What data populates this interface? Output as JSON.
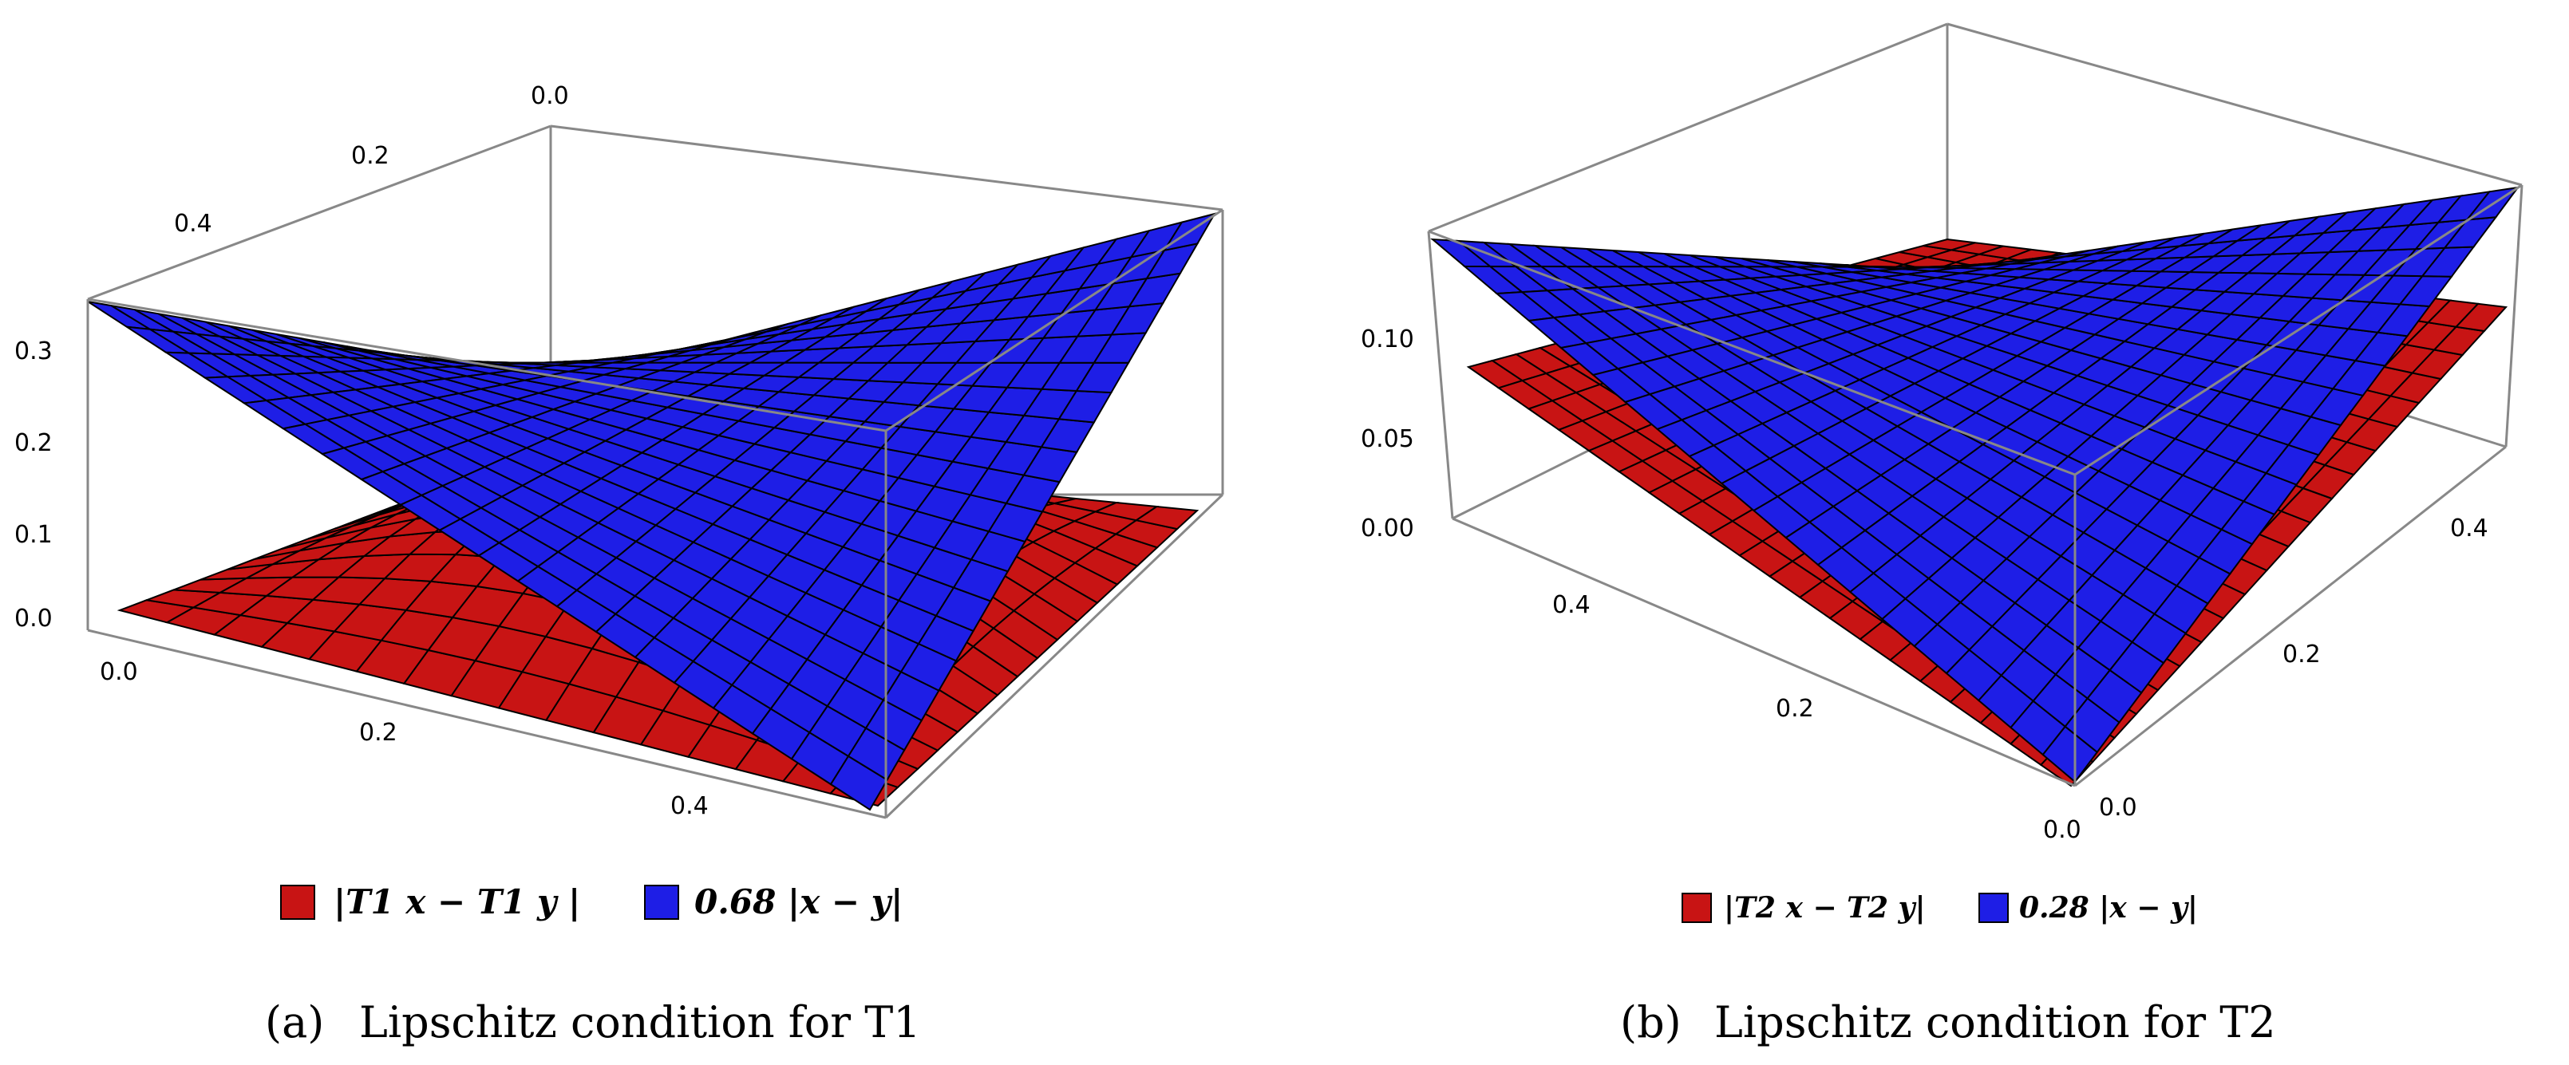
{
  "colors": {
    "red_surface": "#c81414",
    "blue_surface": "#1e1ee6",
    "mesh": "#000000",
    "box": "#888888"
  },
  "chart_data": [
    {
      "type": "surface3d",
      "caption_label": "(a)",
      "caption_text": "Lipschitz condition for T1",
      "x_ticks": [
        "0.0",
        "0.2",
        "0.4"
      ],
      "y_ticks": [
        "0.0",
        "0.2",
        "0.4"
      ],
      "z_ticks": [
        "0.0",
        "0.1",
        "0.2",
        "0.3"
      ],
      "xlim": [
        0,
        0.5
      ],
      "ylim": [
        0,
        0.5
      ],
      "zlim": [
        0,
        0.34
      ],
      "series": [
        {
          "name": "|T1 x − T1 y |",
          "color": "#c81414",
          "peak": 0.17
        },
        {
          "name": "0.68 |x − y|",
          "color": "#1e1ee6",
          "peak": 0.34
        }
      ]
    },
    {
      "type": "surface3d",
      "caption_label": "(b)",
      "caption_text": "Lipschitz condition for T2",
      "x_ticks": [
        "0.0",
        "0.2",
        "0.4"
      ],
      "y_ticks": [
        "0.0",
        "0.2",
        "0.4"
      ],
      "z_ticks": [
        "0.00",
        "0.05",
        "0.10"
      ],
      "xlim": [
        0,
        0.5
      ],
      "ylim": [
        0,
        0.5
      ],
      "zlim": [
        0,
        0.14
      ],
      "series": [
        {
          "name": "|T2 x − T2 y|",
          "color": "#c81414",
          "peak": 0.1
        },
        {
          "name": "0.28 |x − y|",
          "color": "#1e1ee6",
          "peak": 0.14
        }
      ]
    }
  ]
}
